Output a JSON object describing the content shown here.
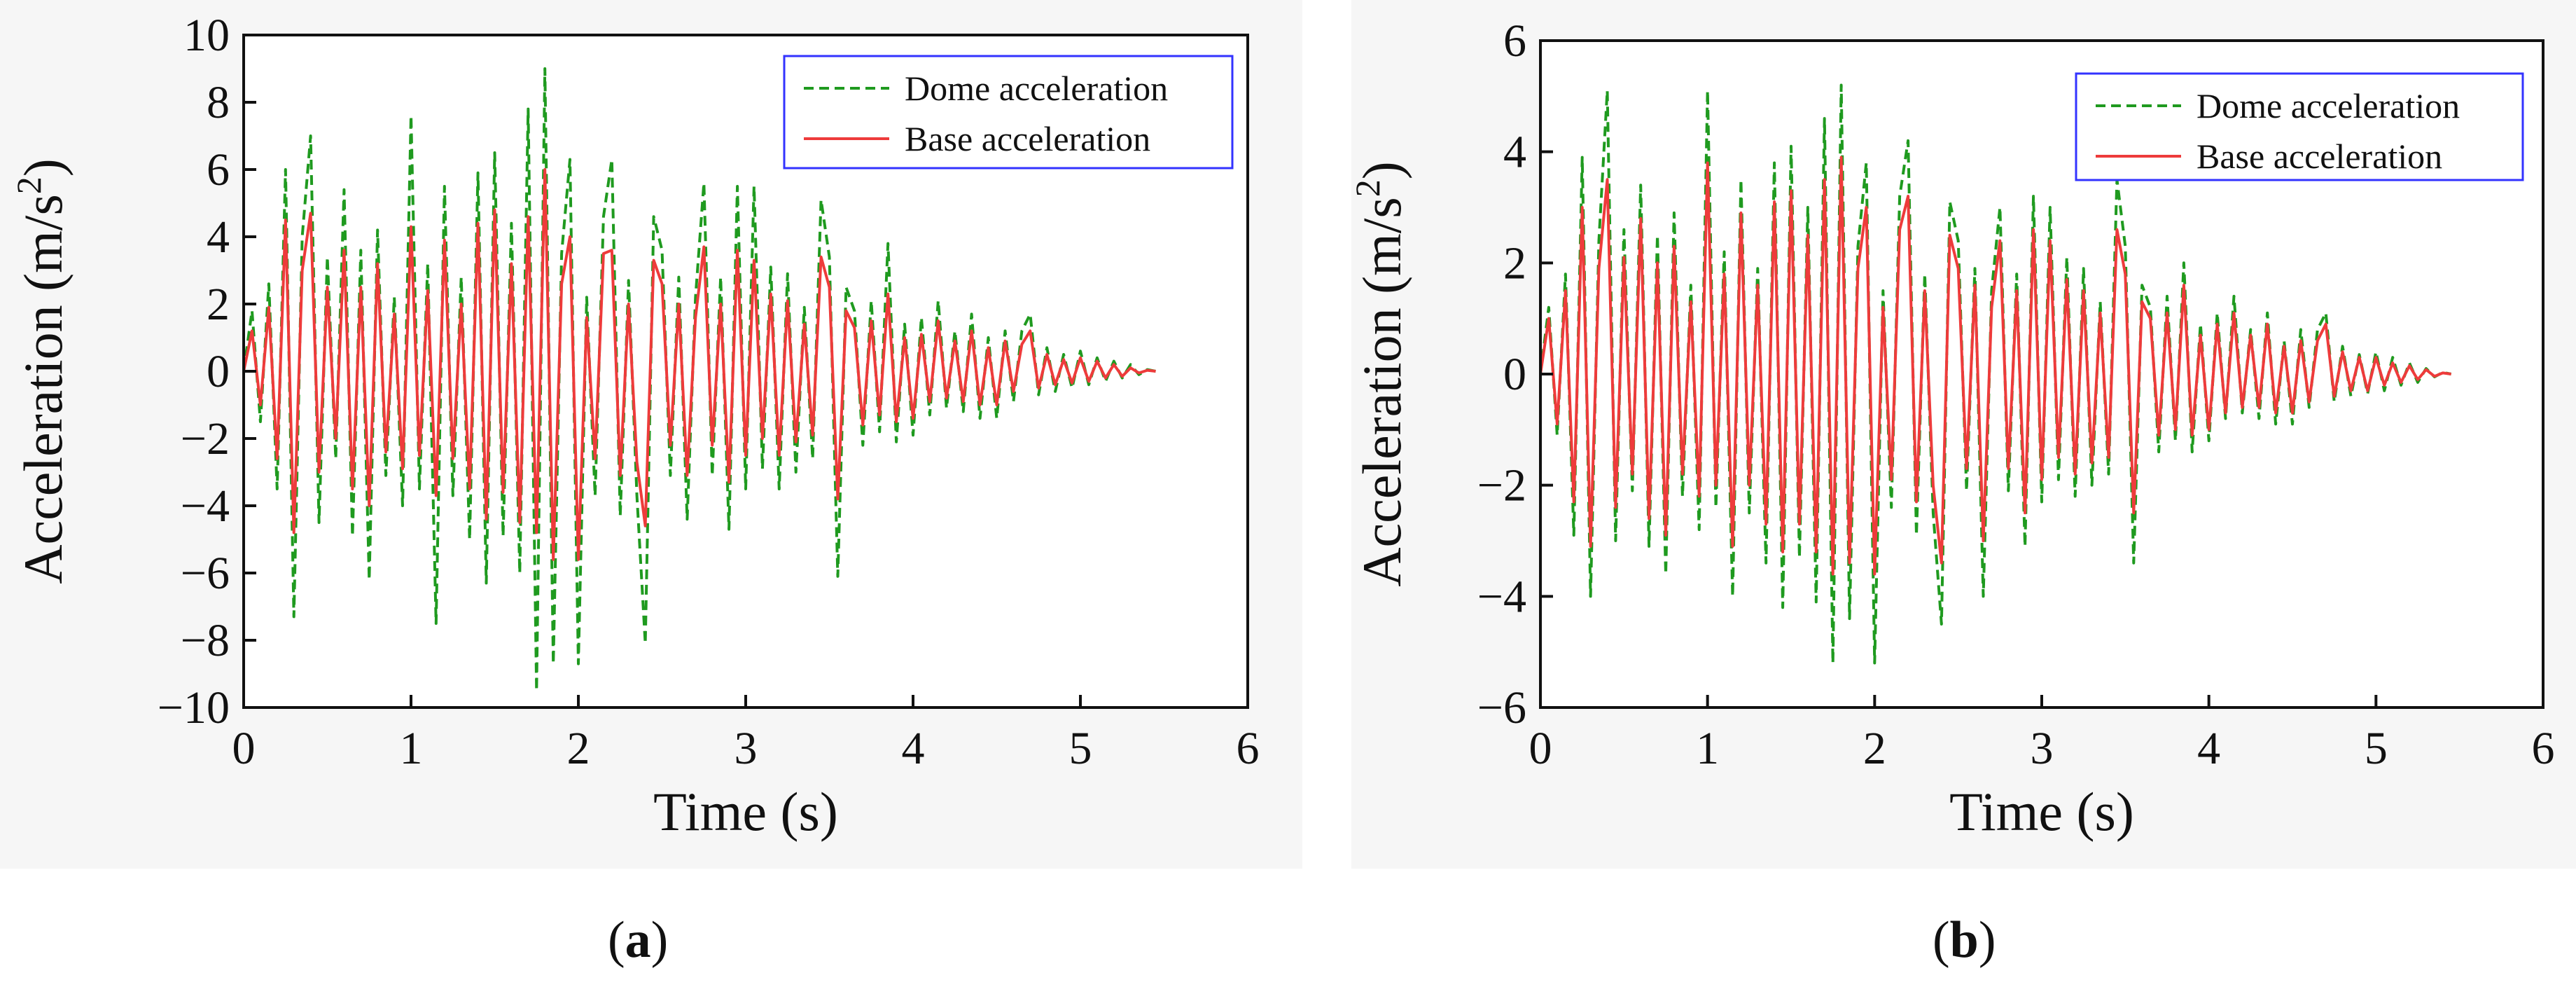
{
  "colors": {
    "dome": "#1f9a1f",
    "base": "#ee3b3b",
    "axis": "#111111",
    "legend_border": "#3333ff"
  },
  "captions": {
    "a": "a",
    "b": "b"
  },
  "chart_data": [
    {
      "id": "a",
      "type": "line",
      "title": "",
      "xlabel": "Time (s)",
      "ylabel_main": "Acceleration (m/s",
      "ylabel_sup": "2",
      "ylabel_close": ")",
      "xlim": [
        0,
        6
      ],
      "ylim": [
        -10,
        10
      ],
      "xticks": [
        0,
        1,
        2,
        3,
        4,
        5,
        6
      ],
      "xtick_labels": [
        "0",
        "1",
        "2",
        "3",
        "4",
        "5",
        "6"
      ],
      "yticks": [
        -10,
        -8,
        -6,
        -4,
        -2,
        0,
        2,
        4,
        6,
        8,
        10
      ],
      "ytick_labels": [
        "−10",
        "−8",
        "−6",
        "−4",
        "−2",
        "0",
        "2",
        "4",
        "6",
        "8",
        "10"
      ],
      "grid": false,
      "legend_position": "top-right",
      "series": [
        {
          "name": "Dome acceleration",
          "style": "dashed",
          "color": "#1f9a1f",
          "x": [
            0,
            0.05,
            0.1,
            0.15,
            0.2,
            0.25,
            0.3,
            0.35,
            0.4,
            0.45,
            0.5,
            0.55,
            0.6,
            0.65,
            0.7,
            0.75,
            0.8,
            0.85,
            0.9,
            0.95,
            1.0,
            1.05,
            1.1,
            1.15,
            1.2,
            1.25,
            1.3,
            1.35,
            1.4,
            1.45,
            1.5,
            1.55,
            1.6,
            1.65,
            1.7,
            1.75,
            1.8,
            1.85,
            1.9,
            1.95,
            2.0,
            2.05,
            2.1,
            2.15,
            2.2,
            2.25,
            2.3,
            2.35,
            2.4,
            2.45,
            2.5,
            2.55,
            2.6,
            2.65,
            2.7,
            2.75,
            2.8,
            2.85,
            2.9,
            2.95,
            3.0,
            3.05,
            3.1,
            3.15,
            3.2,
            3.25,
            3.3,
            3.35,
            3.4,
            3.45,
            3.5,
            3.55,
            3.6,
            3.65,
            3.7,
            3.75,
            3.8,
            3.85,
            3.9,
            3.95,
            4.0,
            4.05,
            4.1,
            4.15,
            4.2,
            4.25,
            4.3,
            4.35,
            4.4,
            4.45,
            4.5,
            4.55,
            4.6,
            4.65,
            4.7,
            4.75,
            4.8,
            4.85,
            4.9,
            4.95,
            5.0,
            5.05,
            5.1,
            5.15,
            5.2,
            5.25,
            5.3,
            5.35,
            5.4,
            5.45
          ],
          "y": [
            0,
            1.8,
            -1.5,
            2.6,
            -3.5,
            6.0,
            -7.3,
            4.0,
            7.0,
            -4.5,
            3.4,
            -2.6,
            5.4,
            -4.9,
            3.6,
            -6.2,
            4.2,
            -3.1,
            2.2,
            -4.0,
            7.6,
            -3.5,
            3.2,
            -7.5,
            5.5,
            -3.7,
            2.8,
            -5.0,
            5.9,
            -6.3,
            6.5,
            -4.9,
            4.4,
            -6.0,
            7.8,
            -9.5,
            9.0,
            -8.7,
            3.5,
            6.3,
            -8.7,
            2.2,
            -3.7,
            4.6,
            6.3,
            -4.3,
            2.7,
            -3.7,
            -8.1,
            4.6,
            3.6,
            -3.1,
            2.8,
            -4.4,
            2.2,
            5.6,
            -3.1,
            2.8,
            -4.7,
            5.5,
            -3.5,
            5.5,
            -2.9,
            3.1,
            -3.5,
            2.9,
            -3.0,
            1.9,
            -2.6,
            5.1,
            3.4,
            -6.1,
            2.5,
            1.8,
            -2.2,
            2.1,
            -1.8,
            3.8,
            -2.1,
            1.4,
            -1.9,
            1.6,
            -1.3,
            2.1,
            -1.1,
            1.2,
            -1.2,
            1.7,
            -1.4,
            1.0,
            -1.4,
            1.2,
            -0.9,
            1.2,
            1.7,
            -0.7,
            0.7,
            -0.6,
            0.5,
            -0.5,
            0.6,
            -0.4,
            0.4,
            -0.3,
            0.3,
            -0.2,
            0.2,
            -0.1,
            0.05,
            0
          ]
        },
        {
          "name": "Base acceleration",
          "style": "solid",
          "color": "#ee3b3b",
          "x": [
            0,
            0.05,
            0.1,
            0.15,
            0.2,
            0.25,
            0.3,
            0.35,
            0.4,
            0.45,
            0.5,
            0.55,
            0.6,
            0.65,
            0.7,
            0.75,
            0.8,
            0.85,
            0.9,
            0.95,
            1.0,
            1.05,
            1.1,
            1.15,
            1.2,
            1.25,
            1.3,
            1.35,
            1.4,
            1.45,
            1.5,
            1.55,
            1.6,
            1.65,
            1.7,
            1.75,
            1.8,
            1.85,
            1.9,
            1.95,
            2.0,
            2.05,
            2.1,
            2.15,
            2.2,
            2.25,
            2.3,
            2.35,
            2.4,
            2.45,
            2.5,
            2.55,
            2.6,
            2.65,
            2.7,
            2.75,
            2.8,
            2.85,
            2.9,
            2.95,
            3.0,
            3.05,
            3.1,
            3.15,
            3.2,
            3.25,
            3.3,
            3.35,
            3.4,
            3.45,
            3.5,
            3.55,
            3.6,
            3.65,
            3.7,
            3.75,
            3.8,
            3.85,
            3.9,
            3.95,
            4.0,
            4.05,
            4.1,
            4.15,
            4.2,
            4.25,
            4.3,
            4.35,
            4.4,
            4.45,
            4.5,
            4.55,
            4.6,
            4.65,
            4.7,
            4.75,
            4.8,
            4.85,
            4.9,
            4.95,
            5.0,
            5.05,
            5.1,
            5.15,
            5.2,
            5.25,
            5.3,
            5.35,
            5.4,
            5.45
          ],
          "y": [
            0,
            1.2,
            -1.0,
            1.9,
            -2.6,
            4.5,
            -4.8,
            3.0,
            4.7,
            -3.0,
            2.5,
            -2.0,
            3.6,
            -3.5,
            2.5,
            -4.0,
            3.2,
            -2.4,
            1.7,
            -2.9,
            4.3,
            -2.5,
            2.4,
            -3.7,
            3.9,
            -2.6,
            2.0,
            -3.5,
            4.4,
            -4.4,
            4.8,
            -3.6,
            3.2,
            -4.5,
            4.6,
            -4.8,
            6.0,
            -5.6,
            2.6,
            4.0,
            -5.6,
            1.6,
            -2.6,
            3.5,
            3.6,
            -3.1,
            2.0,
            -2.7,
            -4.6,
            3.3,
            2.6,
            -2.2,
            2.0,
            -3.1,
            1.6,
            3.7,
            -2.2,
            2.0,
            -3.3,
            3.6,
            -2.5,
            3.3,
            -2.0,
            2.3,
            -2.5,
            2.1,
            -2.1,
            1.4,
            -1.9,
            3.4,
            2.5,
            -3.8,
            1.8,
            1.3,
            -1.6,
            1.5,
            -1.3,
            2.3,
            -1.5,
            1.0,
            -1.4,
            1.1,
            -0.9,
            1.5,
            -0.8,
            0.9,
            -0.9,
            1.2,
            -1.0,
            0.7,
            -1.0,
            0.9,
            -0.6,
            0.8,
            1.2,
            -0.5,
            0.5,
            -0.4,
            0.35,
            -0.35,
            0.4,
            -0.3,
            0.3,
            -0.2,
            0.2,
            -0.15,
            0.1,
            -0.05,
            0.03,
            0
          ]
        }
      ]
    },
    {
      "id": "b",
      "type": "line",
      "title": "",
      "xlabel": "Time (s)",
      "ylabel_main": "Acceleration (m/s",
      "ylabel_sup": "2",
      "ylabel_close": ")",
      "xlim": [
        0,
        6
      ],
      "ylim": [
        -6,
        6
      ],
      "xticks": [
        0,
        1,
        2,
        3,
        4,
        5,
        6
      ],
      "xtick_labels": [
        "0",
        "1",
        "2",
        "3",
        "4",
        "5",
        "6"
      ],
      "yticks": [
        -6,
        -4,
        -2,
        0,
        2,
        4,
        6
      ],
      "ytick_labels": [
        "−6",
        "−4",
        "−2",
        "0",
        "2",
        "4",
        "6"
      ],
      "grid": false,
      "legend_position": "top-right",
      "series": [
        {
          "name": "Dome acceleration",
          "style": "dashed",
          "color": "#1f9a1f",
          "x": [
            0,
            0.05,
            0.1,
            0.15,
            0.2,
            0.25,
            0.3,
            0.35,
            0.4,
            0.45,
            0.5,
            0.55,
            0.6,
            0.65,
            0.7,
            0.75,
            0.8,
            0.85,
            0.9,
            0.95,
            1.0,
            1.05,
            1.1,
            1.15,
            1.2,
            1.25,
            1.3,
            1.35,
            1.4,
            1.45,
            1.5,
            1.55,
            1.6,
            1.65,
            1.7,
            1.75,
            1.8,
            1.85,
            1.9,
            1.95,
            2.0,
            2.05,
            2.1,
            2.15,
            2.2,
            2.25,
            2.3,
            2.35,
            2.4,
            2.45,
            2.5,
            2.55,
            2.6,
            2.65,
            2.7,
            2.75,
            2.8,
            2.85,
            2.9,
            2.95,
            3.0,
            3.05,
            3.1,
            3.15,
            3.2,
            3.25,
            3.3,
            3.35,
            3.4,
            3.45,
            3.5,
            3.55,
            3.6,
            3.65,
            3.7,
            3.75,
            3.8,
            3.85,
            3.9,
            3.95,
            4.0,
            4.05,
            4.1,
            4.15,
            4.2,
            4.25,
            4.3,
            4.35,
            4.4,
            4.45,
            4.5,
            4.55,
            4.6,
            4.65,
            4.7,
            4.75,
            4.8,
            4.85,
            4.9,
            4.95,
            5.0,
            5.05,
            5.1,
            5.15,
            5.2,
            5.25,
            5.3,
            5.35,
            5.4,
            5.45
          ],
          "y": [
            0,
            1.2,
            -1.1,
            1.8,
            -2.9,
            3.9,
            -4.0,
            2.4,
            5.1,
            -3.0,
            2.6,
            -2.1,
            3.4,
            -3.1,
            2.5,
            -3.6,
            2.9,
            -2.2,
            1.6,
            -2.8,
            5.1,
            -2.4,
            2.2,
            -4.0,
            3.5,
            -2.5,
            1.9,
            -3.4,
            3.8,
            -4.2,
            4.1,
            -3.3,
            3.0,
            -4.1,
            4.6,
            -5.2,
            5.2,
            -4.4,
            2.3,
            3.8,
            -5.2,
            1.5,
            -2.4,
            3.2,
            4.2,
            -2.9,
            1.8,
            -2.5,
            -4.5,
            3.1,
            2.4,
            -2.1,
            1.9,
            -4.0,
            1.5,
            3.0,
            -2.1,
            1.8,
            -3.1,
            3.2,
            -2.3,
            3.0,
            -1.9,
            2.1,
            -2.2,
            1.9,
            -2.0,
            1.3,
            -1.8,
            3.5,
            2.3,
            -3.4,
            1.6,
            1.2,
            -1.4,
            1.4,
            -1.2,
            2.0,
            -1.4,
            0.9,
            -1.2,
            1.1,
            -0.8,
            1.4,
            -0.7,
            0.8,
            -0.8,
            1.1,
            -0.9,
            0.6,
            -0.9,
            0.8,
            -0.6,
            0.8,
            1.1,
            -0.5,
            0.5,
            -0.4,
            0.35,
            -0.35,
            0.4,
            -0.3,
            0.3,
            -0.2,
            0.2,
            -0.15,
            0.1,
            -0.05,
            0.03,
            0
          ]
        },
        {
          "name": "Base acceleration",
          "style": "solid",
          "color": "#ee3b3b",
          "x": [
            0,
            0.05,
            0.1,
            0.15,
            0.2,
            0.25,
            0.3,
            0.35,
            0.4,
            0.45,
            0.5,
            0.55,
            0.6,
            0.65,
            0.7,
            0.75,
            0.8,
            0.85,
            0.9,
            0.95,
            1.0,
            1.05,
            1.1,
            1.15,
            1.2,
            1.25,
            1.3,
            1.35,
            1.4,
            1.45,
            1.5,
            1.55,
            1.6,
            1.65,
            1.7,
            1.75,
            1.8,
            1.85,
            1.9,
            1.95,
            2.0,
            2.05,
            2.1,
            2.15,
            2.2,
            2.25,
            2.3,
            2.35,
            2.4,
            2.45,
            2.5,
            2.55,
            2.6,
            2.65,
            2.7,
            2.75,
            2.8,
            2.85,
            2.9,
            2.95,
            3.0,
            3.05,
            3.1,
            3.15,
            3.2,
            3.25,
            3.3,
            3.35,
            3.4,
            3.45,
            3.5,
            3.55,
            3.6,
            3.65,
            3.7,
            3.75,
            3.8,
            3.85,
            3.9,
            3.95,
            4.0,
            4.05,
            4.1,
            4.15,
            4.2,
            4.25,
            4.3,
            4.35,
            4.4,
            4.45,
            4.5,
            4.55,
            4.6,
            4.65,
            4.7,
            4.75,
            4.8,
            4.85,
            4.9,
            4.95,
            5.0,
            5.05,
            5.1,
            5.15,
            5.2,
            5.25,
            5.3,
            5.35,
            5.4,
            5.45
          ],
          "y": [
            0,
            1.0,
            -0.9,
            1.5,
            -2.3,
            3.0,
            -3.1,
            1.9,
            3.5,
            -2.4,
            2.1,
            -1.8,
            2.8,
            -2.6,
            2.0,
            -2.9,
            2.3,
            -1.8,
            1.3,
            -2.2,
            3.8,
            -2.0,
            1.8,
            -3.1,
            2.9,
            -2.0,
            1.6,
            -2.7,
            3.1,
            -3.2,
            3.3,
            -2.7,
            2.5,
            -3.2,
            3.5,
            -3.6,
            3.9,
            -3.4,
            1.9,
            3.0,
            -3.6,
            1.2,
            -1.9,
            2.6,
            3.2,
            -2.3,
            1.5,
            -2.0,
            -3.4,
            2.5,
            1.9,
            -1.7,
            1.6,
            -3.0,
            1.2,
            2.4,
            -1.7,
            1.5,
            -2.5,
            2.6,
            -1.9,
            2.4,
            -1.5,
            1.7,
            -1.8,
            1.5,
            -1.6,
            1.1,
            -1.5,
            2.6,
            1.8,
            -2.5,
            1.3,
            1.0,
            -1.1,
            1.1,
            -1.0,
            1.6,
            -1.1,
            0.7,
            -1.0,
            0.9,
            -0.7,
            1.1,
            -0.6,
            0.7,
            -0.6,
            0.9,
            -0.7,
            0.5,
            -0.7,
            0.6,
            -0.5,
            0.6,
            0.9,
            -0.4,
            0.4,
            -0.3,
            0.3,
            -0.3,
            0.3,
            -0.2,
            0.2,
            -0.15,
            0.15,
            -0.1,
            0.08,
            -0.04,
            0.02,
            0
          ]
        }
      ]
    }
  ]
}
